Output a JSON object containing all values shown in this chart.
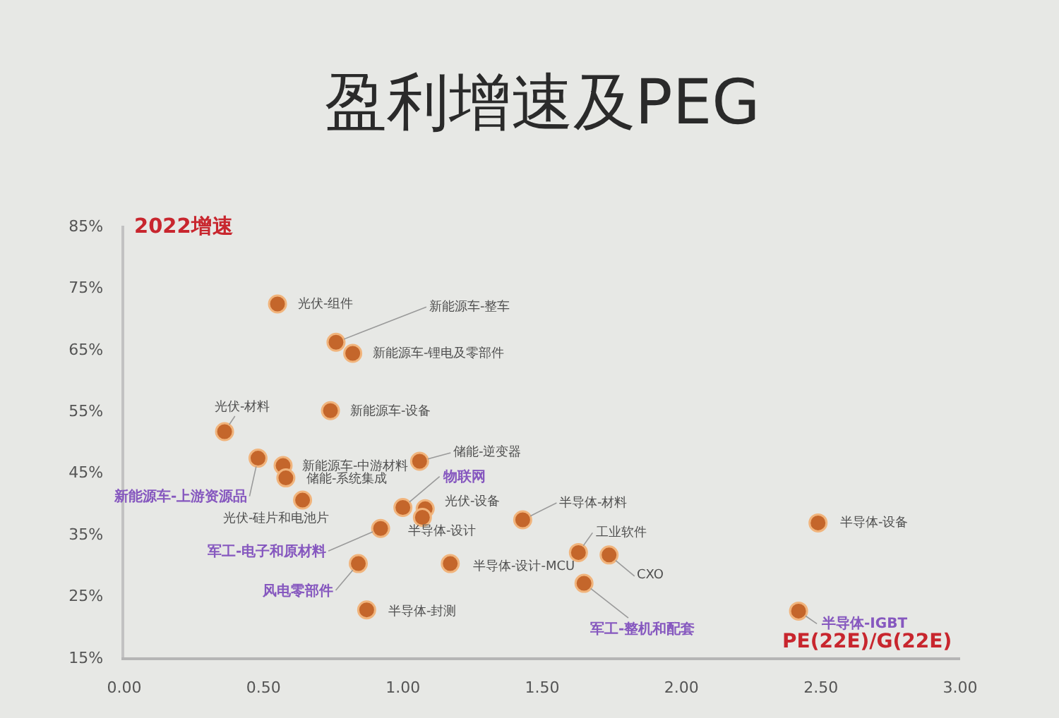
{
  "chart_data": {
    "type": "scatter",
    "title": "盈利增速及PEG",
    "xlabel": "PE(22E)/G(22E)",
    "ylabel": "2022增速",
    "x": [
      0.55,
      0.76,
      0.82,
      0.74,
      0.36,
      0.48,
      0.57,
      0.58,
      0.64,
      1.06,
      1.0,
      1.08,
      1.07,
      0.92,
      0.84,
      0.87,
      1.17,
      1.43,
      1.63,
      1.74,
      1.65,
      2.49,
      2.42
    ],
    "values": [
      72.3,
      66.1,
      64.3,
      55.0,
      51.6,
      47.3,
      46.1,
      44.1,
      40.5,
      46.8,
      39.3,
      39.1,
      37.7,
      35.9,
      30.2,
      22.7,
      30.2,
      37.3,
      32.0,
      31.6,
      27.0,
      36.8,
      22.5
    ],
    "value_labels": [
      "光伏-组件",
      "新能源车-整车",
      "新能源车-锂电及零部件",
      "新能源车-设备",
      "光伏-材料",
      "新能源车-上游资源品",
      "新能源车-中游材料",
      "储能-系统集成",
      "光伏-硅片和电池片",
      "储能-逆变器",
      "物联网",
      "光伏-设备",
      "半导体-设计",
      "军工-电子和原材料",
      "风电零部件",
      "半导体-封测",
      "半导体-设计-MCU",
      "半导体-材料",
      "工业软件",
      "CXO",
      "军工-整机和配套",
      "半导体-设备",
      "半导体-IGBT"
    ],
    "color": "#c4662b",
    "marker": "circle",
    "xlim": [
      0,
      3
    ],
    "ylim": [
      15,
      85
    ],
    "xticks": [
      {
        "value": 0,
        "label": "0.00"
      },
      {
        "value": 0.5,
        "label": "0.50"
      },
      {
        "value": 1,
        "label": "1.00"
      },
      {
        "value": 1.5,
        "label": "1.50"
      },
      {
        "value": 2,
        "label": "2.00"
      },
      {
        "value": 2.5,
        "label": "2.50"
      },
      {
        "value": 3,
        "label": "3.00"
      }
    ],
    "yticks": [
      {
        "value": 15,
        "label": "15%"
      },
      {
        "value": 25,
        "label": "25%"
      },
      {
        "value": 35,
        "label": "35%"
      },
      {
        "value": 45,
        "label": "45%"
      },
      {
        "value": 55,
        "label": "55%"
      },
      {
        "value": 65,
        "label": "65%"
      },
      {
        "value": 75,
        "label": "75%"
      },
      {
        "value": 85,
        "label": "85%"
      }
    ]
  }
}
